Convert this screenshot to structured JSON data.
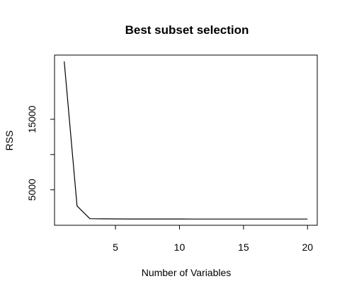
{
  "chart_data": {
    "type": "line",
    "title": "Best subset selection",
    "xlabel": "Number of Variables",
    "ylabel": "RSS",
    "x": [
      1,
      2,
      3,
      4,
      5,
      6,
      7,
      8,
      9,
      10,
      11,
      12,
      13,
      14,
      15,
      16,
      17,
      18,
      19,
      20
    ],
    "series": [
      {
        "values": [
          23200,
          2700,
          900,
          880,
          870,
          865,
          862,
          860,
          858,
          857,
          856,
          855,
          855,
          854,
          854,
          853,
          853,
          853,
          853,
          853
        ]
      }
    ],
    "xlim": [
      0.24,
      20.76
    ],
    "ylim": [
      -30,
      24100
    ],
    "xticks": [
      5,
      10,
      15,
      20
    ],
    "yticks": [
      5000,
      15000
    ],
    "grid": false,
    "line_color": "#000000"
  }
}
